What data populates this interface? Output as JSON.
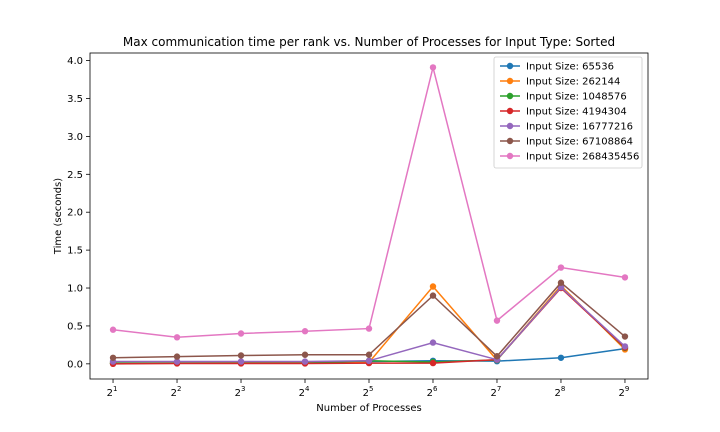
{
  "chart_data": {
    "type": "line",
    "title": "Max communication time per rank vs. Number of Processes for Input Type: Sorted",
    "xlabel": "Number of Processes",
    "ylabel": "Time (seconds)",
    "x_scale": "log2",
    "x": [
      2,
      4,
      8,
      16,
      32,
      64,
      128,
      256,
      512
    ],
    "x_tick_labels": [
      {
        "base": "2",
        "exp": "1"
      },
      {
        "base": "2",
        "exp": "2"
      },
      {
        "base": "2",
        "exp": "3"
      },
      {
        "base": "2",
        "exp": "4"
      },
      {
        "base": "2",
        "exp": "5"
      },
      {
        "base": "2",
        "exp": "6"
      },
      {
        "base": "2",
        "exp": "7"
      },
      {
        "base": "2",
        "exp": "8"
      },
      {
        "base": "2",
        "exp": "9"
      }
    ],
    "y_ticks": [
      "0.0",
      "0.5",
      "1.0",
      "1.5",
      "2.0",
      "2.5",
      "3.0",
      "3.5",
      "4.0"
    ],
    "ylim": [
      -0.2,
      4.1
    ],
    "grid": false,
    "legend_position": "top-right",
    "series": [
      {
        "name": "Input Size: 65536",
        "color": "#1f77b4",
        "values": [
          0.005,
          0.01,
          0.01,
          0.015,
          0.03,
          0.04,
          0.035,
          0.08,
          0.2
        ]
      },
      {
        "name": "Input Size: 262144",
        "color": "#ff7f0e",
        "values": [
          0.01,
          0.01,
          0.015,
          0.015,
          0.02,
          1.02,
          0.05,
          1.03,
          0.19
        ]
      },
      {
        "name": "Input Size: 1048576",
        "color": "#2ca02c",
        "values": [
          0.01,
          0.01,
          0.01,
          0.01,
          0.04,
          0.025,
          0.05,
          1.01,
          0.21
        ]
      },
      {
        "name": "Input Size: 4194304",
        "color": "#d62728",
        "values": [
          0.0,
          0.005,
          0.005,
          0.005,
          0.01,
          0.01,
          0.055,
          1.0,
          0.215
        ]
      },
      {
        "name": "Input Size: 16777216",
        "color": "#9467bd",
        "values": [
          0.03,
          0.03,
          0.03,
          0.03,
          0.04,
          0.28,
          0.055,
          1.01,
          0.23
        ]
      },
      {
        "name": "Input Size: 67108864",
        "color": "#8c564b",
        "values": [
          0.08,
          0.095,
          0.11,
          0.12,
          0.12,
          0.9,
          0.1,
          1.07,
          0.36
        ]
      },
      {
        "name": "Input Size: 268435456",
        "color": "#e377c2",
        "values": [
          0.45,
          0.35,
          0.4,
          0.43,
          0.465,
          3.91,
          0.57,
          1.27,
          1.14
        ]
      }
    ]
  }
}
